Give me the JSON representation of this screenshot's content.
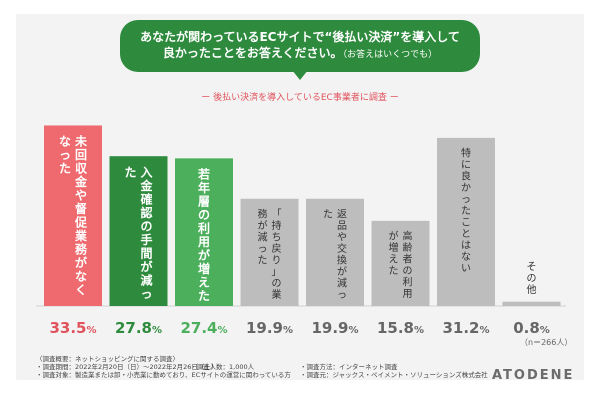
{
  "header": {
    "question_line1": "あなたが関わっているECサイトで“後払い決済”を導入して",
    "question_line2": "良かったことをお答えください。",
    "question_note": "（お答えはいくつでも）",
    "subtitle": "ー 後払い決済を導入しているEC事業者に調査 ー"
  },
  "chart_data": {
    "type": "bar",
    "categories": [
      "未回収金や督促業務がなくなった",
      "入金確認の手間が減った",
      "若年層の利用が増えた",
      "「持ち戻り」の業務が減った",
      "返品や交換が減った",
      "高齢者の利用が増えた",
      "特に良かったことはない",
      "その他"
    ],
    "values": [
      33.5,
      27.8,
      27.4,
      19.9,
      19.9,
      15.8,
      31.2,
      0.8
    ],
    "value_labels": [
      "33.5%",
      "27.8%",
      "27.4%",
      "19.9%",
      "19.9%",
      "15.8%",
      "31.2%",
      "0.8%"
    ],
    "unit": "%",
    "colors": [
      "#ef6a6e",
      "#2e8b3d",
      "#4caf5c",
      "#bdbdbd",
      "#bdbdbd",
      "#bdbdbd",
      "#bdbdbd",
      "#bdbdbd"
    ],
    "label_colors": [
      "#e0525c",
      "#2e8b3d",
      "#4caf5c",
      "#666666",
      "#666666",
      "#666666",
      "#666666",
      "#666666"
    ],
    "ylim": [
      0,
      36
    ],
    "n_label": "（n＝266人）"
  },
  "footer": {
    "line1": "〈調査概要：ネットショッピングに関する調査〉",
    "line2": "・調査期間：2022年2月20日（日）〜2022年2月26日（土）",
    "line2b": "・調査人数：1,000人",
    "line2c": "・調査方法：インターネット調査",
    "line3": "・調査対象：製造業または卸・小売業に勤めており、ECサイトの運営に関わっている方",
    "line3b": "・調査元：ジャックス・ペイメント・ソリューションズ株式会社",
    "logo": "ATODENE"
  }
}
